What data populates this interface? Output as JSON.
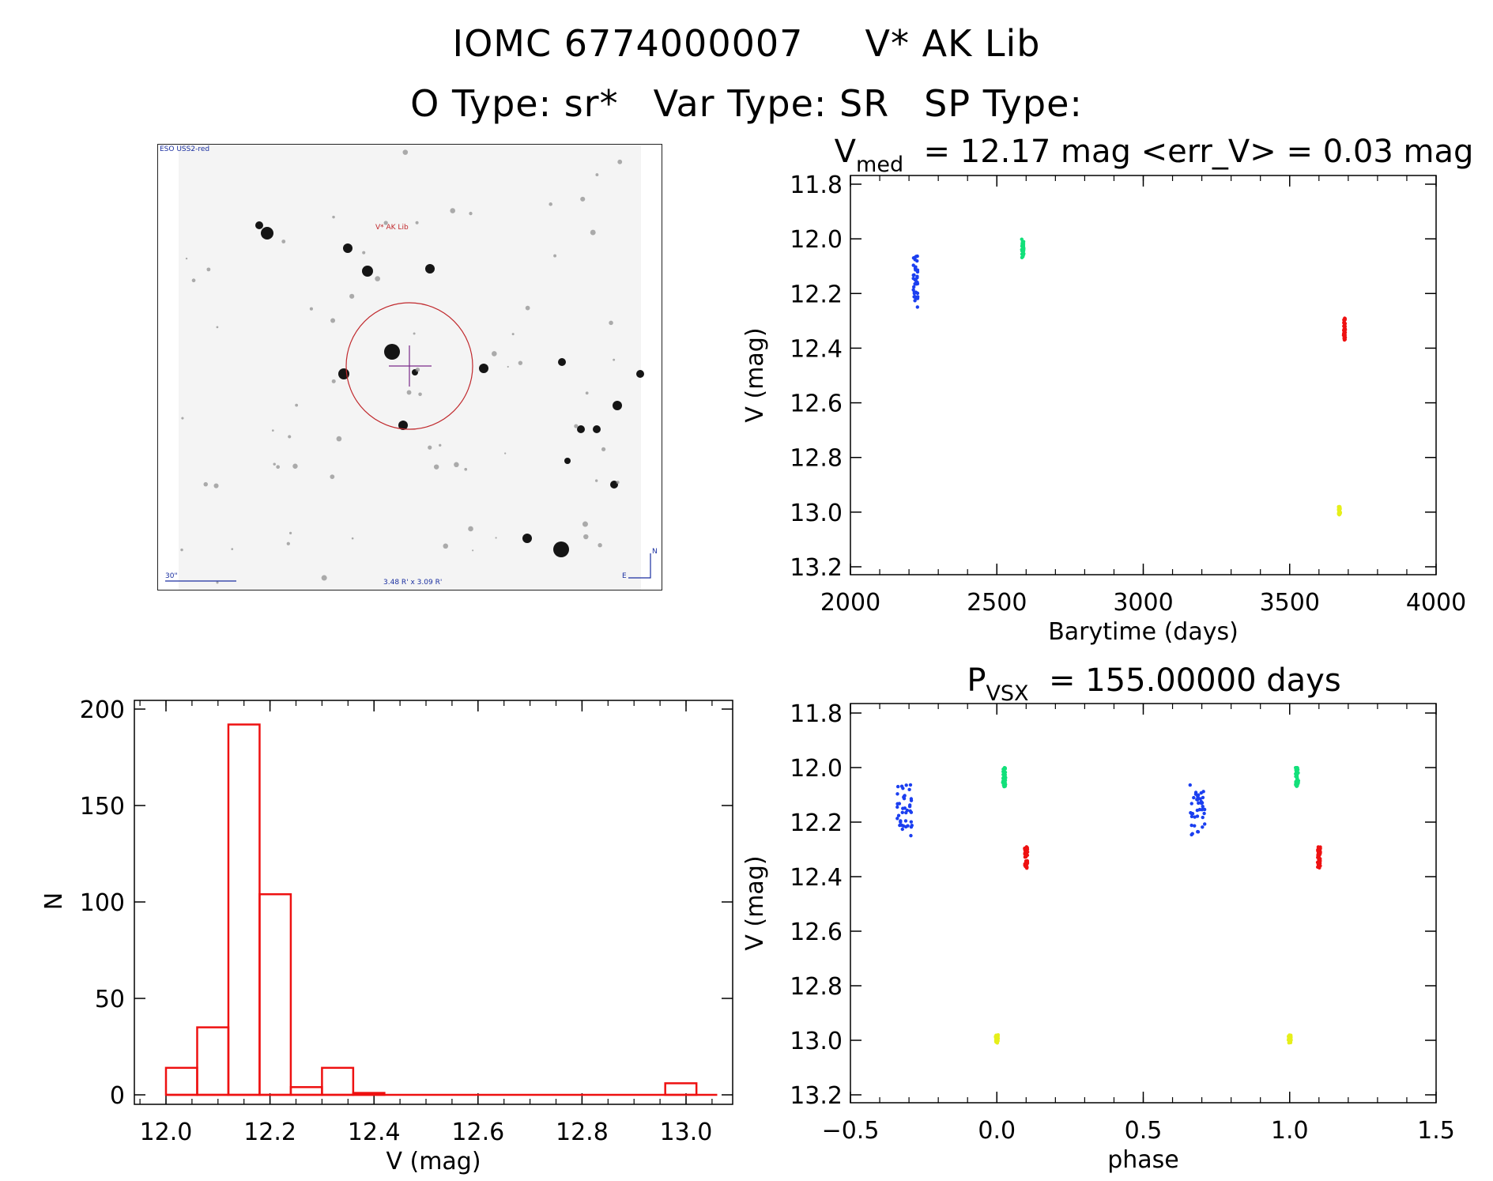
{
  "header": {
    "title": "IOMC 6774000007",
    "name": "V* AK Lib",
    "o_type": "O Type: sr*",
    "var_type": "Var Type: SR",
    "sp_type": "SP Type:"
  },
  "finder": {
    "survey_label": "ESO USS2-red",
    "target_label": "V* AK Lib",
    "scale_label": "30\"",
    "fov_label": "3.48 R' x 3.09 R'",
    "north_label": "N",
    "east_label": "E",
    "circle_color": "#c0282c",
    "scale_color": "#1a2fa0"
  },
  "chart_data": [
    {
      "id": "lightcurve",
      "type": "scatter",
      "title_main": "V",
      "title_sub": "med",
      "title_rest": "= 12.17 mag <err_V> = 0.03 mag",
      "xlabel": "Barytime (days)",
      "ylabel": "V (mag)",
      "xlim": [
        2000,
        4000
      ],
      "ylim": [
        13.2,
        11.8
      ],
      "xticks": [
        "2000",
        "2500",
        "3000",
        "3500",
        "4000"
      ],
      "yticks": [
        "11.8",
        "12.0",
        "12.2",
        "12.4",
        "12.6",
        "12.8",
        "13.0",
        "13.2"
      ],
      "series": [
        {
          "color": "#1b3ff0",
          "x": [
            2215,
            2230
          ],
          "y": [
            12.06,
            12.25
          ]
        },
        {
          "color": "#12e07a",
          "x": [
            2585,
            2592
          ],
          "y": [
            12.0,
            12.07
          ]
        },
        {
          "color": "#ee1111",
          "x": [
            3684,
            3690
          ],
          "y": [
            12.29,
            12.37
          ]
        },
        {
          "color": "#e6ef1a",
          "x": [
            3667,
            3673
          ],
          "y": [
            12.98,
            13.01
          ]
        }
      ]
    },
    {
      "id": "histogram",
      "type": "bar",
      "xlabel": "V (mag)",
      "ylabel": "N",
      "xlim": [
        11.92,
        13.12
      ],
      "ylim": [
        0,
        200
      ],
      "xticks": [
        "12.0",
        "12.2",
        "12.4",
        "12.6",
        "12.8",
        "13.0"
      ],
      "yticks": [
        "0",
        "50",
        "100",
        "150",
        "200"
      ],
      "bin_edges": [
        12.0,
        12.06,
        12.12,
        12.18,
        12.24,
        12.3,
        12.36,
        12.42,
        12.48,
        12.54,
        12.6,
        12.66,
        12.72,
        12.78,
        12.84,
        12.9,
        12.96,
        13.02
      ],
      "values": [
        14,
        35,
        192,
        104,
        4,
        14,
        1,
        0,
        0,
        0,
        0,
        0,
        0,
        0,
        0,
        0,
        6
      ],
      "color": "#ee1111"
    },
    {
      "id": "phased",
      "type": "scatter",
      "title_main": "P",
      "title_sub": "VSX",
      "title_rest": "= 155.00000 days",
      "xlabel": "phase",
      "ylabel": "V (mag)",
      "xlim": [
        -0.5,
        1.5
      ],
      "ylim": [
        13.2,
        11.8
      ],
      "xticks": [
        "−0.5",
        "0.0",
        "0.5",
        "1.0",
        "1.5"
      ],
      "yticks": [
        "11.8",
        "12.0",
        "12.2",
        "12.4",
        "12.6",
        "12.8",
        "13.0",
        "13.2"
      ],
      "series": [
        {
          "color": "#1b3ff0",
          "x": [
            -0.34,
            -0.29
          ],
          "y": [
            12.06,
            12.25
          ]
        },
        {
          "color": "#1b3ff0",
          "x": [
            0.66,
            0.71
          ],
          "y": [
            12.06,
            12.25
          ]
        },
        {
          "color": "#12e07a",
          "x": [
            0.02,
            0.03
          ],
          "y": [
            12.0,
            12.07
          ]
        },
        {
          "color": "#12e07a",
          "x": [
            1.02,
            1.03
          ],
          "y": [
            12.0,
            12.07
          ]
        },
        {
          "color": "#ee1111",
          "x": [
            0.095,
            0.105
          ],
          "y": [
            12.29,
            12.37
          ]
        },
        {
          "color": "#ee1111",
          "x": [
            1.095,
            1.105
          ],
          "y": [
            12.29,
            12.37
          ]
        },
        {
          "color": "#e6ef1a",
          "x": [
            -0.005,
            0.005
          ],
          "y": [
            12.98,
            13.01
          ]
        },
        {
          "color": "#e6ef1a",
          "x": [
            0.995,
            1.005
          ],
          "y": [
            12.98,
            13.01
          ]
        }
      ]
    }
  ]
}
